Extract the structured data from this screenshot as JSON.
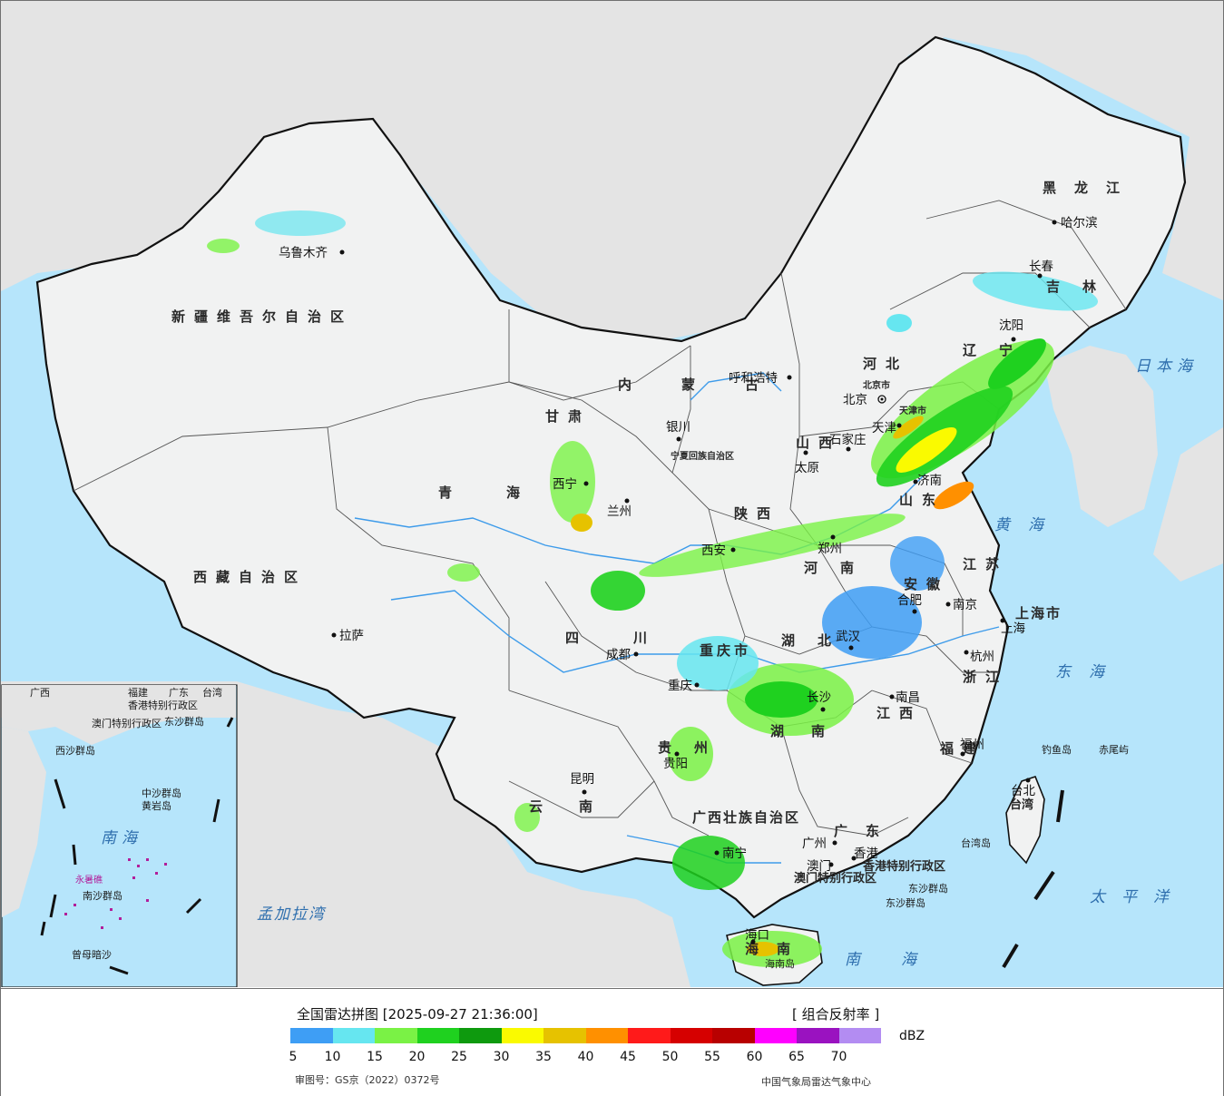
{
  "legend": {
    "title": "全国雷达拼图 [2025-09-27 21:36:00]",
    "product": "[ 组合反射率 ]",
    "unit": "dBZ",
    "ticks": [
      "5",
      "10",
      "15",
      "20",
      "25",
      "30",
      "35",
      "40",
      "45",
      "50",
      "55",
      "60",
      "65",
      "70"
    ],
    "colors": [
      "#3e9ef5",
      "#66e6f0",
      "#7af245",
      "#1fd11f",
      "#0e9a0e",
      "#fafa00",
      "#e6c200",
      "#ff9000",
      "#ff1a1a",
      "#d60000",
      "#b80000",
      "#ff00ff",
      "#9a12c0",
      "#b38cf2"
    ],
    "approval_no": "审图号：GS京（2022）0372号",
    "credit": "中国气象局雷达气象中心"
  },
  "map": {
    "colors": {
      "sea": "#b6e5fb",
      "land_china": "#f1f2f2",
      "land_foreign": "#e4e4e4",
      "border": "#111111",
      "river": "#3d9bea"
    },
    "provinces": [
      "新疆维吾尔自治区",
      "西藏自治区",
      "青海",
      "甘肃",
      "内蒙古",
      "黑龙江",
      "吉林",
      "辽宁",
      "河北",
      "山西",
      "陕西",
      "宁夏回族自治区",
      "四川",
      "云南",
      "贵州",
      "重庆市",
      "湖北",
      "湖南",
      "江西",
      "安徽",
      "江苏",
      "浙江",
      "福建",
      "河南",
      "山东",
      "广东",
      "广西壮族自治区",
      "海南",
      "台湾",
      "上海市",
      "北京市",
      "天津市",
      "香港特别行政区",
      "澳门特别行政区"
    ],
    "cities": [
      "乌鲁木齐",
      "拉萨",
      "西宁",
      "兰州",
      "银川",
      "呼和浩特",
      "北京",
      "天津",
      "石家庄",
      "太原",
      "西安",
      "郑州",
      "济南",
      "合肥",
      "南京",
      "上海",
      "杭州",
      "武汉",
      "长沙",
      "南昌",
      "福州",
      "台北",
      "广州",
      "香港",
      "澳门",
      "南宁",
      "海口",
      "贵阳",
      "昆明",
      "成都",
      "重庆",
      "哈尔滨",
      "长春",
      "沈阳"
    ],
    "seas": [
      "日本海",
      "黄海",
      "东海",
      "太平洋",
      "南海",
      "孟加拉湾"
    ],
    "islands": [
      "钓鱼岛",
      "赤尾屿",
      "台湾岛",
      "东沙群岛",
      "海南岛"
    ],
    "inset": [
      "西沙群岛",
      "中沙群岛",
      "黄岩岛",
      "南沙群岛",
      "永暑礁",
      "曾母暗沙",
      "南海"
    ],
    "inset_top": [
      "香港特别行政区",
      "澳门特别行政区",
      "东沙群岛",
      "台湾",
      "福建",
      "广东",
      "广西"
    ]
  }
}
